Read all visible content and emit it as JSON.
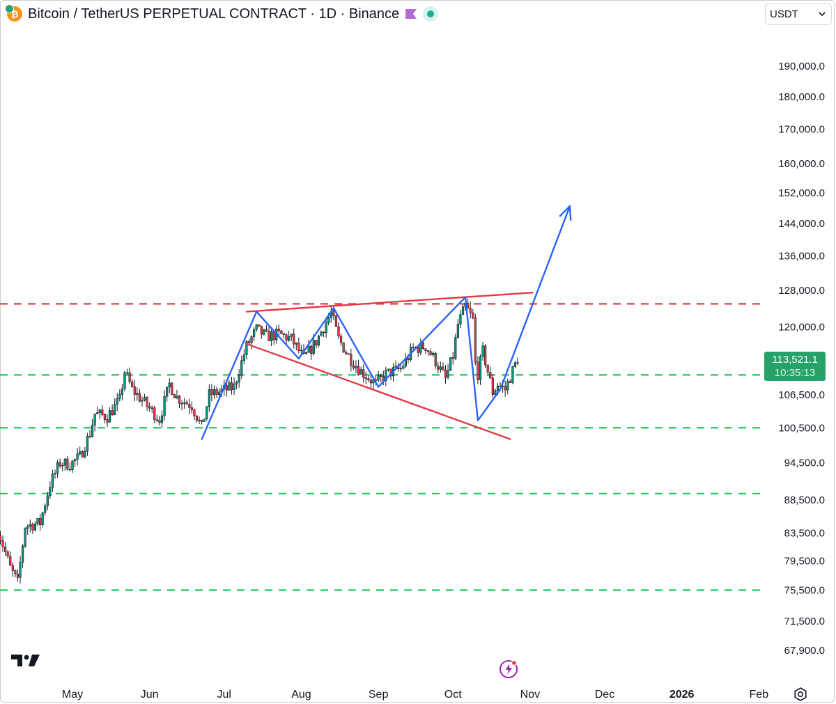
{
  "header": {
    "title": "Bitcoin / TetherUS PERPETUAL CONTRACT · 1D · Binance",
    "currency": "USDT",
    "currency_options": [
      "USDT"
    ]
  },
  "price_badge": {
    "price": "113,521.1",
    "countdown": "10:35:13"
  },
  "icons": {
    "coin": "bitcoin-coin-icon",
    "flag": "flag-icon",
    "status": "market-open-dot-icon",
    "chevron": "chevron-down-icon",
    "logo": "tradingview-logo-icon",
    "bolt": "lightning-icon",
    "settings": "gear-icon"
  },
  "colors": {
    "up": "#089981",
    "down": "#f23645",
    "blue_line": "#2962ff",
    "red_line": "#e53946",
    "green_dash": "#22c55e",
    "red_dash": "#e53946",
    "badge": "#26a269",
    "flag": "#b36ad6"
  },
  "chart_data": {
    "type": "candlestick",
    "title": "Bitcoin / TetherUS PERPETUAL CONTRACT · 1D · Binance",
    "y_axis_labels": [
      {
        "label": "190,000.0",
        "value": 190000
      },
      {
        "label": "180,000.0",
        "value": 180000
      },
      {
        "label": "170,000.0",
        "value": 170000
      },
      {
        "label": "160,000.0",
        "value": 160000
      },
      {
        "label": "152,000.0",
        "value": 152000
      },
      {
        "label": "144,000.0",
        "value": 144000
      },
      {
        "label": "136,000.0",
        "value": 136000
      },
      {
        "label": "128,000.0",
        "value": 128000
      },
      {
        "label": "120,000.0",
        "value": 120000
      },
      {
        "label": "106,500.0",
        "value": 106500
      },
      {
        "label": "100,500.0",
        "value": 100500
      },
      {
        "label": "94,500.0",
        "value": 94500
      },
      {
        "label": "88,500.0",
        "value": 88500
      },
      {
        "label": "83,500.0",
        "value": 83500
      },
      {
        "label": "79,500.0",
        "value": 79500
      },
      {
        "label": "75,500.0",
        "value": 75500
      },
      {
        "label": "71,500.0",
        "value": 71500
      },
      {
        "label": "67,900.0",
        "value": 67900
      }
    ],
    "y_scale": "log",
    "x_axis_labels": [
      {
        "label": "May",
        "date": "2025-05-01",
        "bold": false
      },
      {
        "label": "Jun",
        "date": "2025-06-01",
        "bold": false
      },
      {
        "label": "Jul",
        "date": "2025-07-01",
        "bold": false
      },
      {
        "label": "Aug",
        "date": "2025-08-01",
        "bold": false
      },
      {
        "label": "Sep",
        "date": "2025-09-01",
        "bold": false
      },
      {
        "label": "Oct",
        "date": "2025-10-01",
        "bold": false
      },
      {
        "label": "Nov",
        "date": "2025-11-01",
        "bold": false
      },
      {
        "label": "Dec",
        "date": "2025-12-01",
        "bold": false
      },
      {
        "label": "2026",
        "date": "2026-01-01",
        "bold": true
      },
      {
        "label": "Feb",
        "date": "2026-02-01",
        "bold": false
      }
    ],
    "close_path": [
      [
        "2025-04-01",
        84000
      ],
      [
        "2025-04-06",
        78500
      ],
      [
        "2025-04-09",
        76500
      ],
      [
        "2025-04-12",
        84500
      ],
      [
        "2025-04-18",
        85000
      ],
      [
        "2025-04-22",
        91000
      ],
      [
        "2025-04-26",
        94500
      ],
      [
        "2025-04-30",
        94200
      ],
      [
        "2025-05-04",
        95500
      ],
      [
        "2025-05-08",
        99500
      ],
      [
        "2025-05-10",
        103000
      ],
      [
        "2025-05-15",
        102500
      ],
      [
        "2025-05-20",
        105500
      ],
      [
        "2025-05-22",
        111000
      ],
      [
        "2025-05-25",
        107500
      ],
      [
        "2025-05-31",
        104500
      ],
      [
        "2025-06-05",
        102000
      ],
      [
        "2025-06-09",
        108500
      ],
      [
        "2025-06-12",
        106000
      ],
      [
        "2025-06-18",
        104500
      ],
      [
        "2025-06-22",
        100500
      ],
      [
        "2025-06-25",
        106500
      ],
      [
        "2025-06-30",
        107200
      ],
      [
        "2025-07-05",
        108000
      ],
      [
        "2025-07-10",
        116000
      ],
      [
        "2025-07-14",
        119500
      ],
      [
        "2025-07-18",
        118000
      ],
      [
        "2025-07-23",
        118500
      ],
      [
        "2025-07-28",
        117500
      ],
      [
        "2025-08-02",
        113500
      ],
      [
        "2025-08-07",
        117000
      ],
      [
        "2025-08-13",
        123000
      ],
      [
        "2025-08-16",
        117500
      ],
      [
        "2025-08-20",
        114000
      ],
      [
        "2025-08-25",
        111000
      ],
      [
        "2025-08-31",
        108500
      ],
      [
        "2025-09-04",
        110500
      ],
      [
        "2025-09-10",
        111500
      ],
      [
        "2025-09-15",
        115500
      ],
      [
        "2025-09-20",
        116000
      ],
      [
        "2025-09-24",
        113000
      ],
      [
        "2025-09-28",
        109500
      ],
      [
        "2025-10-01",
        114000
      ],
      [
        "2025-10-03",
        120500
      ],
      [
        "2025-10-06",
        124500
      ],
      [
        "2025-10-09",
        121500
      ],
      [
        "2025-10-10",
        112500
      ],
      [
        "2025-10-11",
        110500
      ],
      [
        "2025-10-13",
        115000
      ],
      [
        "2025-10-17",
        107000
      ],
      [
        "2025-10-19",
        108500
      ],
      [
        "2025-10-22",
        107500
      ],
      [
        "2025-10-27",
        113500
      ]
    ],
    "last_price": 113521.1,
    "horizontal_levels": [
      {
        "value": 125000,
        "style": "dashed",
        "color": "red"
      },
      {
        "value": 110300,
        "style": "dashed",
        "color": "green"
      },
      {
        "value": 100500,
        "style": "dashed",
        "color": "green"
      },
      {
        "value": 89500,
        "style": "dashed",
        "color": "green"
      },
      {
        "value": 75500,
        "style": "dashed",
        "color": "green"
      }
    ],
    "trendlines": [
      {
        "color": "red",
        "points": [
          [
            "2025-07-10",
            123300
          ],
          [
            "2025-11-02",
            127500
          ]
        ]
      },
      {
        "color": "red",
        "points": [
          [
            "2025-07-10",
            116500
          ],
          [
            "2025-10-24",
            98500
          ]
        ]
      }
    ],
    "zigzag": {
      "color": "blue",
      "points": [
        [
          "2025-06-22",
          98500
        ],
        [
          "2025-07-14",
          123300
        ],
        [
          "2025-07-31",
          113500
        ],
        [
          "2025-08-14",
          124100
        ],
        [
          "2025-09-01",
          108000
        ],
        [
          "2025-10-06",
          126500
        ],
        [
          "2025-10-11",
          101800
        ],
        [
          "2025-10-20",
          107500
        ],
        [
          "2025-11-17",
          148500
        ]
      ],
      "arrow_end": true
    },
    "grid": false,
    "legend": "none"
  }
}
